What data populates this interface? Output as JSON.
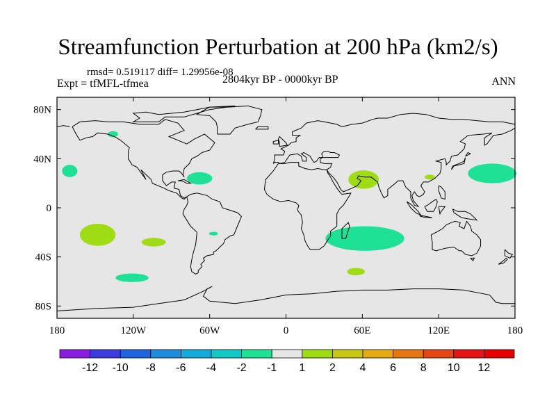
{
  "chart_data": {
    "type": "map-contour",
    "title": "Streamfunction Perturbation at 200 hPa (km2/s)",
    "stats": "rmsd= 0.519117 diff= 1.29956e-08",
    "experiment": "Expt = tfMFL-tfmea",
    "period": "2804kyr BP - 0000kyr BP",
    "season": "ANN",
    "xlim": [
      -180,
      180
    ],
    "ylim": [
      -90,
      90
    ],
    "x_ticks": [
      {
        "value": -180,
        "label": "180"
      },
      {
        "value": -120,
        "label": "120W"
      },
      {
        "value": -60,
        "label": "60W"
      },
      {
        "value": 0,
        "label": "0"
      },
      {
        "value": 60,
        "label": "60E"
      },
      {
        "value": 120,
        "label": "120E"
      },
      {
        "value": 180,
        "label": "180"
      }
    ],
    "y_ticks": [
      {
        "value": 80,
        "label": "80N"
      },
      {
        "value": 40,
        "label": "40N"
      },
      {
        "value": 0,
        "label": "0"
      },
      {
        "value": -40,
        "label": "40S"
      },
      {
        "value": -80,
        "label": "80S"
      }
    ],
    "colorbar": {
      "labels": [
        "-12",
        "-10",
        "-8",
        "-6",
        "-4",
        "-2",
        "-1",
        "1",
        "2",
        "4",
        "6",
        "8",
        "10",
        "12"
      ],
      "colors": [
        "#8a1ee0",
        "#3c3cdc",
        "#1e64dc",
        "#1e8cdc",
        "#14aadc",
        "#14c8c8",
        "#1ee196",
        "#e6e6e6",
        "#a0dc14",
        "#c8c814",
        "#e6aa14",
        "#e67814",
        "#e64614",
        "#e61414",
        "#e60000"
      ]
    },
    "anomalies": [
      {
        "lon": -170,
        "lat": 30,
        "rlon": 6,
        "rlat": 5,
        "level": "-2 to -1",
        "color": "#1ee196"
      },
      {
        "lon": -136,
        "lat": 60,
        "rlon": 4,
        "rlat": 2.5,
        "level": "-2 to -1",
        "color": "#1ee196"
      },
      {
        "lon": -68,
        "lat": 24,
        "rlon": 10,
        "rlat": 5,
        "level": "-2 to -1",
        "color": "#1ee196"
      },
      {
        "lon": -148,
        "lat": -22,
        "rlon": 14,
        "rlat": 9,
        "level": "1 to 2",
        "color": "#a0dc14"
      },
      {
        "lon": -104,
        "lat": -28,
        "rlon": 9.5,
        "rlat": 3.5,
        "level": "1 to 2",
        "color": "#a0dc14"
      },
      {
        "lon": -57,
        "lat": -21,
        "rlon": 3.5,
        "rlat": 1.5,
        "level": "-2 to -1",
        "color": "#1ee196"
      },
      {
        "lon": -121,
        "lat": -57,
        "rlon": 13,
        "rlat": 3.5,
        "level": "-2 to -1",
        "color": "#1ee196"
      },
      {
        "lon": 61,
        "lat": 23,
        "rlon": 12,
        "rlat": 7.5,
        "level": "1 to 2",
        "color": "#a0dc14"
      },
      {
        "lon": 113,
        "lat": 25,
        "rlon": 4,
        "rlat": 2,
        "level": "1 to 2",
        "color": "#a0dc14"
      },
      {
        "lon": 162,
        "lat": 28,
        "rlon": 19,
        "rlat": 8,
        "level": "-2 to -1",
        "color": "#1ee196"
      },
      {
        "lon": 62,
        "lat": -25,
        "rlon": 31,
        "rlat": 10,
        "level": "-2 to -1",
        "color": "#1ee196"
      },
      {
        "lon": 55,
        "lat": -52,
        "rlon": 7,
        "rlat": 3,
        "level": "1 to 2",
        "color": "#a0dc14"
      }
    ]
  }
}
